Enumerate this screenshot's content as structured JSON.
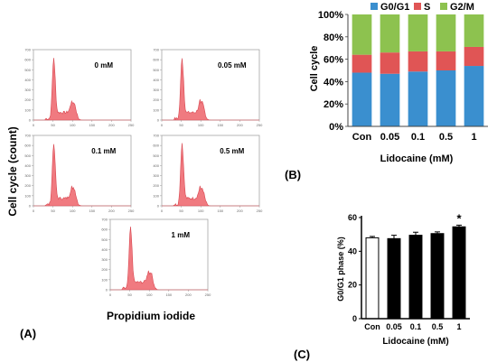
{
  "panel_labels": {
    "a": "(A)",
    "b": "(B)",
    "c": "(C)"
  },
  "histograms": {
    "ylabel": "Cell cycle (count)",
    "xlabel": "Propidium iodide",
    "panels": [
      {
        "label": "0 mM"
      },
      {
        "label": "0.05 mM"
      },
      {
        "label": "0.1 mM"
      },
      {
        "label": "0.5 mM"
      },
      {
        "label": "1 mM"
      }
    ]
  },
  "chart_data": [
    {
      "type": "bar",
      "stacked": true,
      "xlabel": "Lidocaine (mM)",
      "ylabel": "Cell cycle",
      "categories": [
        "Con",
        "0.05",
        "0.1",
        "0.5",
        "1"
      ],
      "series": [
        {
          "name": "G0/G1",
          "color": "#3a8fcf",
          "values": [
            48,
            47,
            49,
            50,
            54
          ]
        },
        {
          "name": "S",
          "color": "#e05555",
          "values": [
            16,
            19,
            18,
            17,
            17
          ]
        },
        {
          "name": "G2/M",
          "color": "#8dc24f",
          "values": [
            36,
            34,
            33,
            33,
            29
          ]
        }
      ],
      "ylim": [
        0,
        100
      ],
      "yticks": [
        "0%",
        "20%",
        "40%",
        "60%",
        "80%",
        "100%"
      ],
      "legend": "top"
    },
    {
      "type": "bar",
      "xlabel": "Lidocaine (mM)",
      "ylabel": "G0/G1 phase (%)",
      "categories": [
        "Con",
        "0.05",
        "0.1",
        "0.5",
        "1"
      ],
      "values": [
        48,
        47.5,
        49.5,
        50.5,
        54.5
      ],
      "errors": [
        0.8,
        2.0,
        1.8,
        1.0,
        1.0
      ],
      "fills": [
        "#ffffff",
        "#000000",
        "#000000",
        "#000000",
        "#000000"
      ],
      "annotations": [
        "",
        "",
        "",
        "",
        "*"
      ],
      "ylim": [
        0,
        60
      ],
      "yticks": [
        "0",
        "20",
        "40",
        "60"
      ]
    }
  ]
}
